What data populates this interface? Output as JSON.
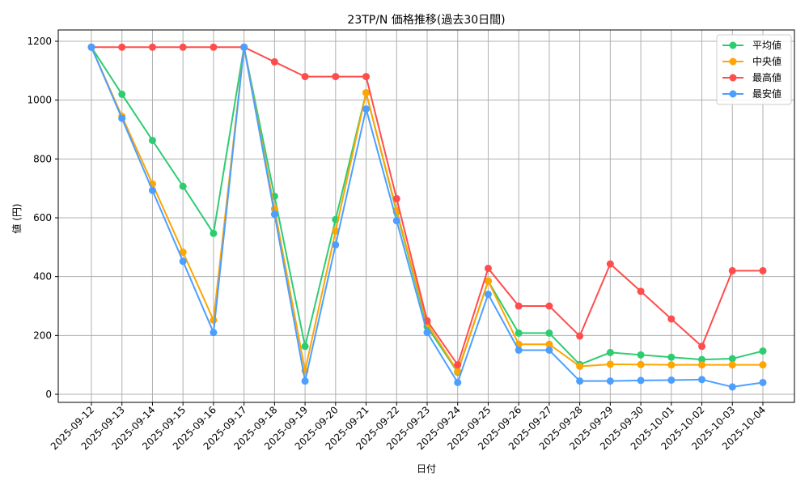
{
  "chart_data": {
    "type": "line",
    "title": "23TP/N 価格推移(過去30日間)",
    "xlabel": "日付",
    "ylabel": "値 (円)",
    "ylim": [
      -30,
      1250
    ],
    "yticks": [
      0,
      200,
      400,
      600,
      800,
      1000,
      1200
    ],
    "grid": true,
    "legend_position": "top-right",
    "x": [
      "2025-09-12",
      "2025-09-13",
      "2025-09-14",
      "2025-09-15",
      "2025-09-16",
      "2025-09-17",
      "2025-09-18",
      "2025-09-19",
      "2025-09-20",
      "2025-09-21",
      "2025-09-22",
      "2025-09-23",
      "2025-09-24",
      "2025-09-25",
      "2025-09-26",
      "2025-09-27",
      "2025-09-28",
      "2025-09-29",
      "2025-09-30",
      "2025-10-01",
      "2025-10-02",
      "2025-10-03",
      "2025-10-04"
    ],
    "series": [
      {
        "name": "平均値",
        "color": "#2ecc71",
        "values": [
          1180,
          1020,
          863,
          707,
          547,
          1180,
          673,
          163,
          594,
          1025,
          620,
          230,
          75,
          385,
          208,
          208,
          101,
          142,
          134,
          126,
          118,
          121,
          147
        ]
      },
      {
        "name": "中央値",
        "color": "#ffa500",
        "values": [
          1180,
          945,
          715,
          483,
          252,
          1180,
          630,
          80,
          555,
          1025,
          625,
          240,
          78,
          385,
          170,
          170,
          95,
          102,
          101,
          100,
          100,
          100,
          100
        ]
      },
      {
        "name": "最高値",
        "color": "#ff4d4d",
        "values": [
          1180,
          1180,
          1180,
          1180,
          1180,
          1180,
          1130,
          1080,
          1080,
          1080,
          665,
          250,
          100,
          428,
          300,
          300,
          198,
          443,
          350,
          256,
          163,
          420,
          420
        ]
      },
      {
        "name": "最安値",
        "color": "#4d9fff",
        "values": [
          1180,
          938,
          693,
          452,
          210,
          1180,
          612,
          45,
          508,
          970,
          590,
          210,
          40,
          340,
          150,
          150,
          45,
          45,
          47,
          48,
          50,
          25,
          40
        ]
      }
    ]
  }
}
